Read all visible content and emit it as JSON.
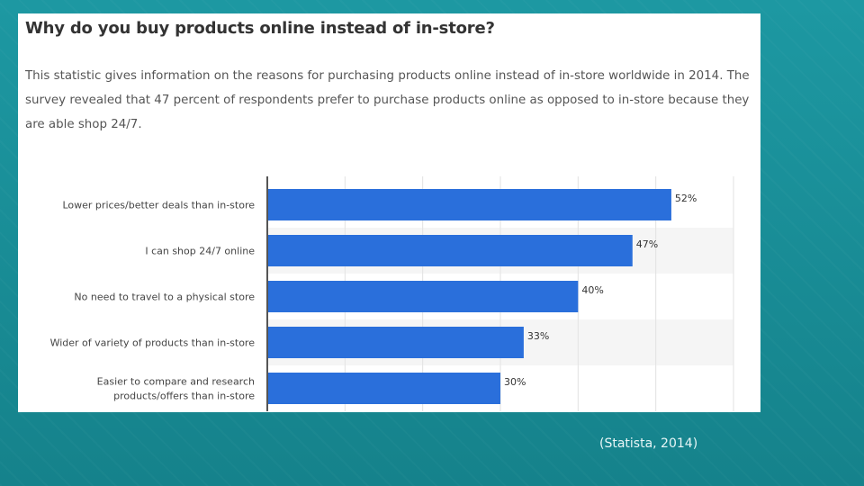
{
  "slide": {
    "source_note": "(Statista, 2014)",
    "colors": {
      "background": "#1a8f99",
      "bar": "#2a6fdb",
      "card": "#ffffff"
    }
  },
  "card": {
    "title": "Why do you buy products online instead of in-store?",
    "description": "This statistic gives information on the reasons for purchasing products online instead of in-store worldwide in 2014. The survey revealed that 47 percent of respondents prefer to purchase products online as opposed to in-store because they are able shop 24/7."
  },
  "chart_data": {
    "type": "bar",
    "orientation": "horizontal",
    "categories": [
      [
        "Lower prices/better deals than in-store"
      ],
      [
        "I can shop 24/7 online"
      ],
      [
        "No need to travel to a physical store"
      ],
      [
        "Wider of variety of products than in-store"
      ],
      [
        "Easier to compare and research",
        "products/offers than in-store"
      ]
    ],
    "values": [
      52,
      47,
      40,
      33,
      30
    ],
    "value_labels": [
      "52%",
      "47%",
      "40%",
      "33%",
      "30%"
    ],
    "unit": "%",
    "xlim": [
      0,
      60
    ],
    "grid": true,
    "color": "#2a6fdb"
  }
}
